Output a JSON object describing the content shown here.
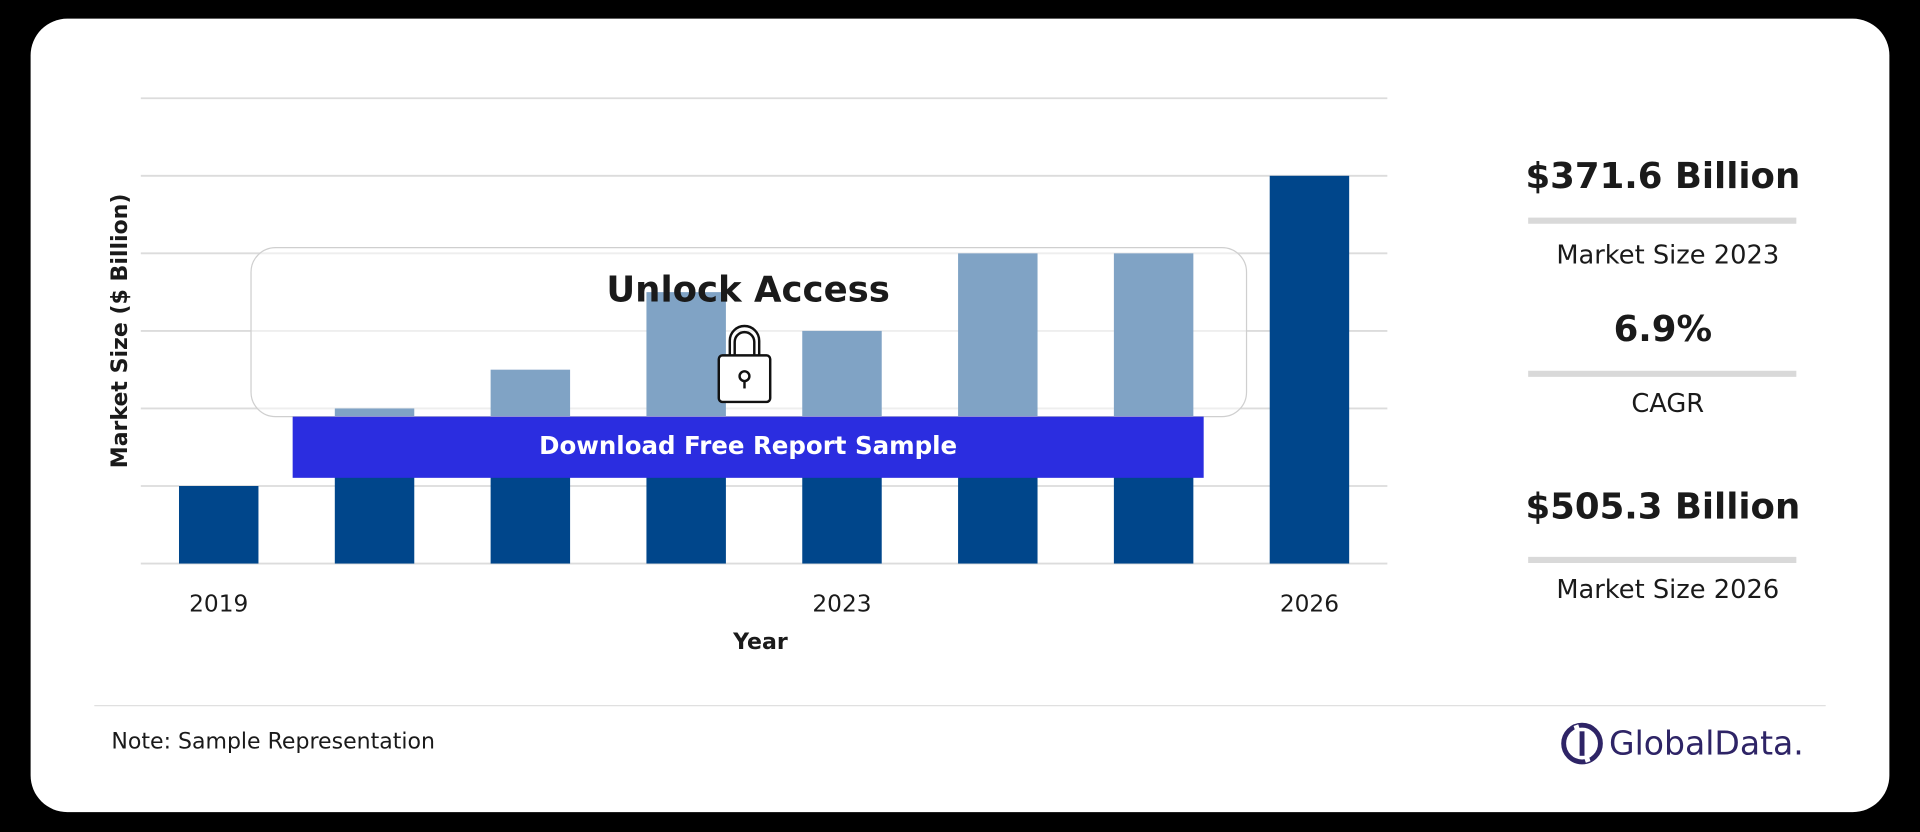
{
  "chart_data": {
    "type": "bar",
    "x_label": "Year",
    "y_label": "Market Size ($ Billion)",
    "categories": [
      "2019",
      null,
      null,
      null,
      "2023",
      null,
      null,
      "2026"
    ],
    "values": [
      1,
      2,
      2.5,
      3.5,
      3,
      4,
      4,
      5
    ],
    "color": "#00468b",
    "ylim": [
      0,
      6
    ],
    "yticks": [
      0,
      1,
      2,
      3,
      4,
      5,
      6
    ],
    "grid": true
  },
  "overlay": {
    "title": "Unlock Access",
    "button": "Download Free Report Sample"
  },
  "stats": [
    {
      "value": "$371.6 Billion",
      "label": "Market Size 2023"
    },
    {
      "value": "6.9%",
      "label": "CAGR"
    },
    {
      "value": "$505.3 Billion",
      "label": "Market Size 2026"
    }
  ],
  "note": "Note: Sample Representation",
  "brand": "GlobalData."
}
